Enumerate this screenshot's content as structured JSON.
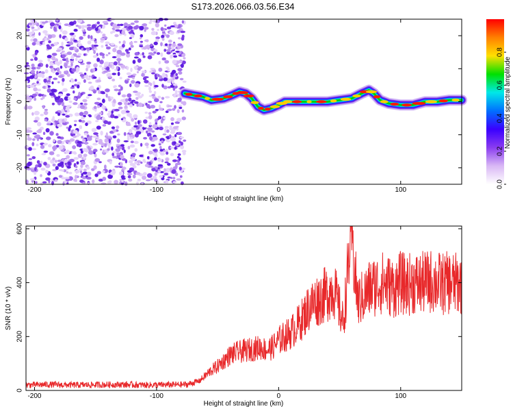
{
  "title": "S173.2026.066.03.56.E34",
  "chart_data": [
    {
      "type": "heatmap",
      "name": "spectrogram",
      "xlabel": "Height of straight line (km)",
      "ylabel": "Frequency (Hz)",
      "xlim": [
        -207,
        150
      ],
      "ylim": [
        -25,
        25
      ],
      "xticks": [
        -200,
        -100,
        0,
        100
      ],
      "yticks": [
        -20,
        -10,
        0,
        10,
        20
      ],
      "noise_region_x": [
        -207,
        -77
      ],
      "signal_ridge": {
        "x": [
          -77,
          -70,
          -62,
          -55,
          -45,
          -38,
          -32,
          -27,
          -22,
          -17,
          -12,
          -6,
          0,
          5,
          10,
          20,
          30,
          40,
          50,
          60,
          68,
          74,
          78,
          83,
          90,
          100,
          110,
          120,
          130,
          140,
          150
        ],
        "freq": [
          2.5,
          2.0,
          1.5,
          0.5,
          1.0,
          2.0,
          3.0,
          2.5,
          1.0,
          -1.5,
          -2.5,
          -2.0,
          -1.0,
          0.0,
          0.0,
          0.0,
          0.0,
          0.0,
          0.5,
          1.0,
          2.5,
          3.5,
          2.5,
          0.5,
          -0.5,
          -1.0,
          -1.0,
          0.0,
          0.0,
          0.5,
          0.5
        ]
      },
      "colorbar": {
        "label": "Normalized spectral amplitude",
        "range": [
          0.0,
          1.0
        ],
        "ticks": [
          "0.0",
          "0.2",
          "0.4",
          "0.6",
          "0.8"
        ],
        "colors": [
          "#ffffff",
          "#d9b8f5",
          "#8a3cf0",
          "#3a00ff",
          "#0070ff",
          "#00e8e8",
          "#00e000",
          "#ffe000",
          "#ff8000",
          "#ff0000"
        ]
      }
    },
    {
      "type": "line",
      "name": "snr",
      "xlabel": "Height of straight line (km)",
      "ylabel": "SNR (10 * v/v)",
      "xlim": [
        -207,
        150
      ],
      "ylim": [
        0,
        610
      ],
      "xticks": [
        -200,
        -100,
        0,
        100
      ],
      "yticks": [
        0,
        200,
        400,
        600
      ],
      "color": "#e8282a",
      "series": [
        {
          "name": "SNR",
          "x": [
            -207,
            -190,
            -170,
            -150,
            -130,
            -110,
            -90,
            -75,
            -65,
            -60,
            -55,
            -50,
            -45,
            -40,
            -35,
            -30,
            -25,
            -20,
            -15,
            -10,
            -5,
            0,
            5,
            10,
            15,
            20,
            25,
            30,
            35,
            40,
            45,
            50,
            53,
            56,
            58,
            60,
            62,
            65,
            70,
            75,
            80,
            85,
            90,
            95,
            100,
            105,
            110,
            115,
            120,
            125,
            130,
            135,
            140,
            145,
            150
          ],
          "y": [
            20,
            22,
            20,
            21,
            22,
            20,
            21,
            22,
            35,
            55,
            75,
            90,
            110,
            130,
            140,
            145,
            150,
            155,
            160,
            150,
            160,
            185,
            200,
            215,
            240,
            270,
            310,
            330,
            345,
            360,
            380,
            300,
            250,
            400,
            520,
            600,
            450,
            330,
            350,
            380,
            390,
            400,
            390,
            380,
            400,
            390,
            400,
            395,
            400,
            405,
            400,
            395,
            400,
            395,
            400
          ]
        }
      ]
    }
  ]
}
